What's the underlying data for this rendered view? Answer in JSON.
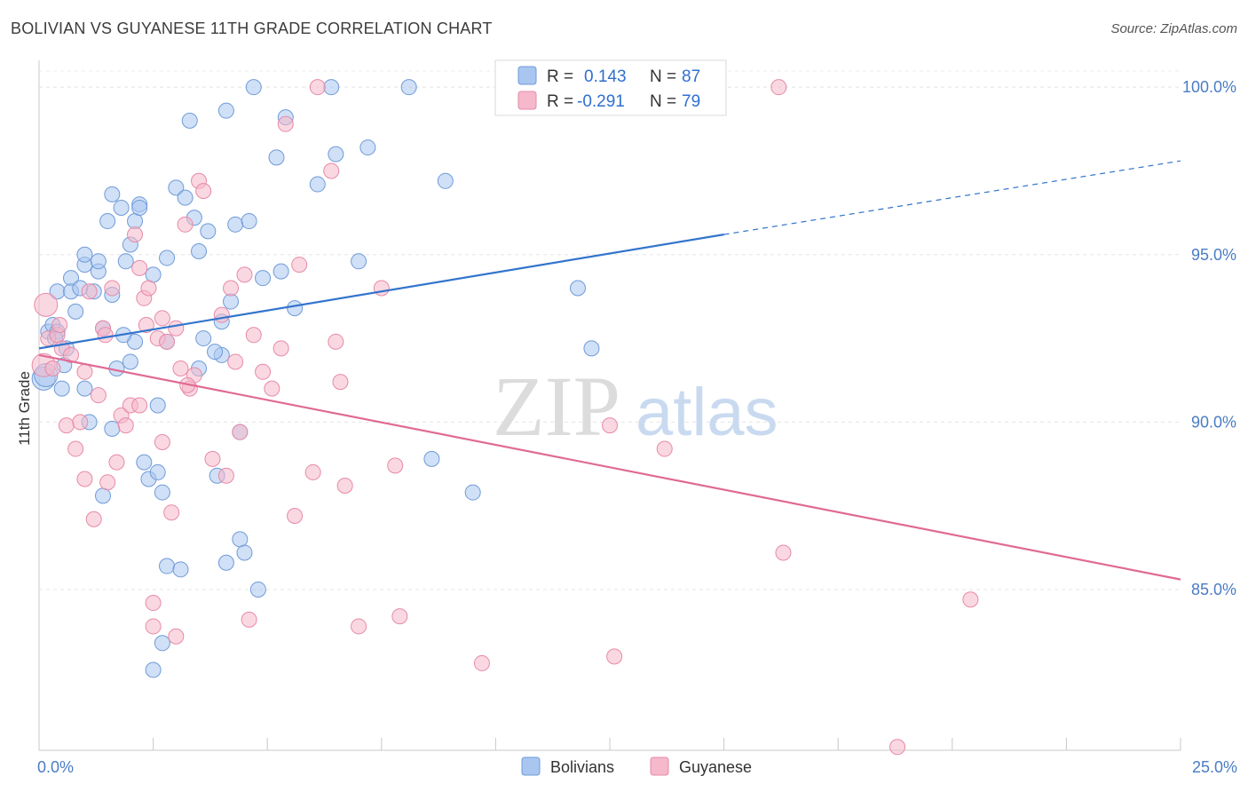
{
  "header": {
    "title": "BOLIVIAN VS GUYANESE 11TH GRADE CORRELATION CHART",
    "source": "Source: ZipAtlas.com"
  },
  "watermark": {
    "zip": "ZIP",
    "atlas": "atlas"
  },
  "legend": {
    "rows": [
      {
        "r_label": "R =",
        "r_value": "0.143",
        "n_label": "N =",
        "n_value": "87",
        "color": "#a9c6f0"
      },
      {
        "r_label": "R =",
        "r_value": "-0.291",
        "n_label": "N =",
        "n_value": "79",
        "color": "#f6b8cb"
      }
    ]
  },
  "bottom_legend": [
    {
      "label": "Bolivians",
      "color": "#a9c6f0"
    },
    {
      "label": "Guyanese",
      "color": "#f6b8cb"
    }
  ],
  "chart_data": {
    "type": "scatter",
    "ylabel": "11th Grade",
    "xlim": [
      0,
      25
    ],
    "ylim": [
      80.2,
      100.8
    ],
    "x_tick_labels": [
      {
        "value": 0,
        "label": "0.0%"
      },
      {
        "value": 25,
        "label": "25.0%"
      }
    ],
    "y_tick_labels": [
      {
        "value": 100,
        "label": "100.0%"
      },
      {
        "value": 95,
        "label": "95.0%"
      },
      {
        "value": 90,
        "label": "90.0%"
      },
      {
        "value": 85,
        "label": "85.0%"
      }
    ],
    "gridlines": true,
    "series": [
      {
        "name": "Bolivians",
        "color": "#a9c6f0",
        "stroke": "#6f9bd8",
        "trend": {
          "x0": 0,
          "y0": 92.2,
          "x1": 15,
          "y1": 95.6,
          "dash_to_x": 25,
          "dash_to_y": 97.8,
          "color": "#3374cc"
        },
        "points": [
          [
            0.1,
            91.3
          ],
          [
            0.2,
            92.7
          ],
          [
            0.3,
            92.9
          ],
          [
            0.4,
            93.9
          ],
          [
            0.4,
            92.7
          ],
          [
            0.5,
            91.0
          ],
          [
            0.6,
            92.2
          ],
          [
            0.7,
            94.3
          ],
          [
            0.7,
            93.9
          ],
          [
            0.8,
            93.3
          ],
          [
            0.9,
            94.0
          ],
          [
            1.0,
            94.7
          ],
          [
            1.0,
            91.0
          ],
          [
            1.0,
            95.0
          ],
          [
            1.1,
            90.0
          ],
          [
            1.2,
            93.9
          ],
          [
            1.3,
            94.5
          ],
          [
            1.3,
            94.8
          ],
          [
            1.4,
            92.8
          ],
          [
            1.4,
            87.8
          ],
          [
            1.5,
            96.0
          ],
          [
            1.6,
            93.8
          ],
          [
            1.6,
            89.8
          ],
          [
            1.6,
            96.8
          ],
          [
            1.7,
            91.6
          ],
          [
            1.8,
            96.4
          ],
          [
            1.9,
            94.8
          ],
          [
            2.0,
            95.3
          ],
          [
            2.0,
            91.8
          ],
          [
            2.1,
            96.0
          ],
          [
            2.1,
            92.4
          ],
          [
            2.2,
            96.5
          ],
          [
            2.2,
            96.4
          ],
          [
            2.3,
            88.8
          ],
          [
            2.4,
            88.3
          ],
          [
            2.5,
            94.4
          ],
          [
            2.5,
            82.6
          ],
          [
            2.6,
            88.5
          ],
          [
            2.6,
            90.5
          ],
          [
            2.7,
            83.4
          ],
          [
            2.7,
            87.9
          ],
          [
            2.8,
            85.7
          ],
          [
            2.8,
            92.4
          ],
          [
            2.8,
            94.9
          ],
          [
            3.0,
            97.0
          ],
          [
            3.1,
            85.6
          ],
          [
            3.2,
            96.7
          ],
          [
            3.3,
            99.0
          ],
          [
            3.4,
            96.1
          ],
          [
            3.5,
            91.6
          ],
          [
            3.5,
            95.1
          ],
          [
            3.6,
            92.5
          ],
          [
            3.7,
            95.7
          ],
          [
            3.9,
            88.4
          ],
          [
            4.0,
            92.0
          ],
          [
            4.0,
            93.0
          ],
          [
            4.1,
            85.8
          ],
          [
            4.1,
            99.3
          ],
          [
            4.2,
            93.6
          ],
          [
            4.3,
            95.9
          ],
          [
            4.4,
            89.7
          ],
          [
            4.4,
            86.5
          ],
          [
            4.5,
            86.1
          ],
          [
            4.6,
            96.0
          ],
          [
            4.7,
            100.0
          ],
          [
            4.8,
            85.0
          ],
          [
            4.9,
            94.3
          ],
          [
            5.2,
            97.9
          ],
          [
            5.3,
            94.5
          ],
          [
            5.4,
            99.1
          ],
          [
            5.6,
            93.4
          ],
          [
            6.1,
            97.1
          ],
          [
            6.4,
            100.0
          ],
          [
            6.5,
            98.0
          ],
          [
            7.0,
            94.8
          ],
          [
            7.2,
            98.2
          ],
          [
            8.1,
            100.0
          ],
          [
            8.6,
            88.9
          ],
          [
            8.9,
            97.2
          ],
          [
            9.5,
            87.9
          ],
          [
            11.8,
            94.0
          ],
          [
            12.1,
            92.2
          ],
          [
            0.15,
            91.4
          ],
          [
            0.35,
            92.5
          ],
          [
            0.55,
            91.7
          ],
          [
            1.85,
            92.6
          ],
          [
            3.85,
            92.1
          ]
        ]
      },
      {
        "name": "Guyanese",
        "color": "#f6b8cb",
        "stroke": "#e78aa7",
        "trend": {
          "x0": 0,
          "y0": 92.0,
          "x1": 25,
          "y1": 85.3,
          "color": "#e06a94"
        },
        "points": [
          [
            0.1,
            91.7
          ],
          [
            0.2,
            92.5
          ],
          [
            0.3,
            91.6
          ],
          [
            0.4,
            92.6
          ],
          [
            0.5,
            92.2
          ],
          [
            0.6,
            89.9
          ],
          [
            0.7,
            92.0
          ],
          [
            0.8,
            89.2
          ],
          [
            0.9,
            90.0
          ],
          [
            1.0,
            91.5
          ],
          [
            1.0,
            88.3
          ],
          [
            1.1,
            93.9
          ],
          [
            1.2,
            87.1
          ],
          [
            1.3,
            90.8
          ],
          [
            1.4,
            92.8
          ],
          [
            1.5,
            88.2
          ],
          [
            1.6,
            94.0
          ],
          [
            1.7,
            88.8
          ],
          [
            1.8,
            90.2
          ],
          [
            1.9,
            89.9
          ],
          [
            2.0,
            90.5
          ],
          [
            2.1,
            95.6
          ],
          [
            2.2,
            94.6
          ],
          [
            2.2,
            90.5
          ],
          [
            2.3,
            93.7
          ],
          [
            2.4,
            94.0
          ],
          [
            2.5,
            84.6
          ],
          [
            2.5,
            83.9
          ],
          [
            2.6,
            92.5
          ],
          [
            2.7,
            93.1
          ],
          [
            2.7,
            89.4
          ],
          [
            2.8,
            92.4
          ],
          [
            2.9,
            87.3
          ],
          [
            3.0,
            83.6
          ],
          [
            3.0,
            92.8
          ],
          [
            3.1,
            91.6
          ],
          [
            3.2,
            95.9
          ],
          [
            3.3,
            91.0
          ],
          [
            3.4,
            91.4
          ],
          [
            3.5,
            97.2
          ],
          [
            3.6,
            96.9
          ],
          [
            3.8,
            88.9
          ],
          [
            4.0,
            93.2
          ],
          [
            4.1,
            88.4
          ],
          [
            4.2,
            94.0
          ],
          [
            4.3,
            91.8
          ],
          [
            4.4,
            89.7
          ],
          [
            4.5,
            94.4
          ],
          [
            4.6,
            84.1
          ],
          [
            4.7,
            92.6
          ],
          [
            4.9,
            91.5
          ],
          [
            5.1,
            91.0
          ],
          [
            5.3,
            92.2
          ],
          [
            5.4,
            98.9
          ],
          [
            5.6,
            87.2
          ],
          [
            5.7,
            94.7
          ],
          [
            6.0,
            88.5
          ],
          [
            6.1,
            100.0
          ],
          [
            6.4,
            97.5
          ],
          [
            6.5,
            92.4
          ],
          [
            6.6,
            91.2
          ],
          [
            6.7,
            88.1
          ],
          [
            7.0,
            83.9
          ],
          [
            7.5,
            94.0
          ],
          [
            7.8,
            88.7
          ],
          [
            7.9,
            84.2
          ],
          [
            9.7,
            82.8
          ],
          [
            12.5,
            89.9
          ],
          [
            12.6,
            83.0
          ],
          [
            13.7,
            89.2
          ],
          [
            16.2,
            100.0
          ],
          [
            16.3,
            86.1
          ],
          [
            18.8,
            80.3
          ],
          [
            20.4,
            84.7
          ],
          [
            0.15,
            93.5
          ],
          [
            0.45,
            92.9
          ],
          [
            1.45,
            92.6
          ],
          [
            2.35,
            92.9
          ],
          [
            3.25,
            91.1
          ]
        ]
      }
    ]
  }
}
